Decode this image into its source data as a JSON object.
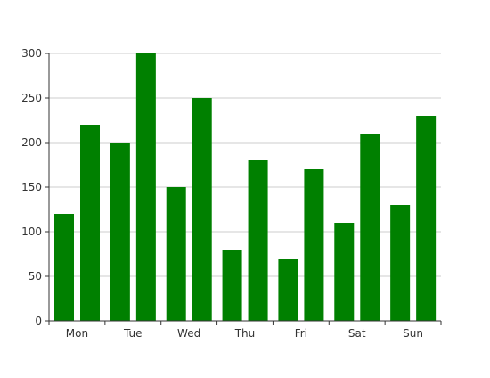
{
  "chart_data": {
    "type": "bar",
    "categories": [
      "Mon",
      "Tue",
      "Wed",
      "Thu",
      "Fri",
      "Sat",
      "Sun"
    ],
    "series": [
      {
        "values": [
          120,
          200,
          150,
          80,
          70,
          110,
          130
        ]
      },
      {
        "values": [
          220,
          300,
          250,
          180,
          170,
          210,
          230
        ]
      }
    ],
    "ylim": [
      0,
      300
    ],
    "yticks": [
      0,
      50,
      100,
      150,
      200,
      250,
      300
    ],
    "grid": true,
    "legend": "none",
    "title": "",
    "xlabel": "",
    "ylabel": ""
  },
  "colors": {
    "bar": "#008000",
    "grid": "#cccccc",
    "axis": "#333333"
  }
}
